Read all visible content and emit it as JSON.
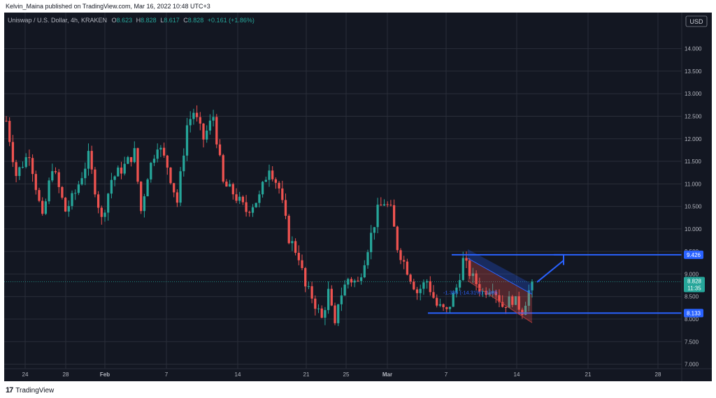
{
  "header": {
    "published_by": "Kelvin_Maina published on TradingView.com, Mar 16, 2022 10:48 UTC+3"
  },
  "footer": {
    "brand": "TradingView",
    "logo_glyph": "17"
  },
  "legend": {
    "symbol": "Uniswap / U.S. Dollar, 4h, KRAKEN",
    "o_label": "O",
    "o": "8.623",
    "h_label": "H",
    "h": "8.828",
    "l_label": "L",
    "l": "8.617",
    "c_label": "C",
    "c": "8.828",
    "change": "+0.161 (+1.86%)"
  },
  "currency": "USD",
  "colors": {
    "background": "#131722",
    "up": "#26a69a",
    "down": "#ef5350",
    "grid": "#2a2e39",
    "drawing": "#2962ff",
    "text": "#b2b5be"
  },
  "chart_data": {
    "type": "candlestick",
    "title": "Uniswap / U.S. Dollar, 4h, KRAKEN",
    "xlabel": "",
    "ylabel": "",
    "ylim": [
      6.9,
      14.8
    ],
    "y_ticks": [
      "14.000",
      "13.500",
      "13.000",
      "12.500",
      "12.000",
      "11.500",
      "11.000",
      "10.500",
      "10.000",
      "9.500",
      "9.000",
      "8.500",
      "8.000",
      "7.500",
      "7.000"
    ],
    "x_ticks": [
      "24",
      "28",
      "Feb",
      "7",
      "14",
      "21",
      "25",
      "Mar",
      "7",
      "14",
      "21",
      "28"
    ],
    "grid": true,
    "last_price": "8.828",
    "countdown": "11:35",
    "price_tags": [
      "9.426",
      "8.133"
    ],
    "horizontal_lines": [
      9.426,
      8.133
    ],
    "channel_label": "-1.385 (-14.31%) -1385",
    "path": [
      [
        0,
        12.4
      ],
      [
        3,
        11.2
      ],
      [
        7,
        11.7
      ],
      [
        11,
        10.2
      ],
      [
        14,
        11.4
      ],
      [
        18,
        10.4
      ],
      [
        21,
        10.8
      ],
      [
        25,
        11.6
      ],
      [
        29,
        10.2
      ],
      [
        32,
        11.1
      ],
      [
        36,
        11.4
      ],
      [
        39,
        11.7
      ],
      [
        41,
        10.4
      ],
      [
        43,
        11.2
      ],
      [
        46,
        11.9
      ],
      [
        49,
        11.4
      ],
      [
        52,
        10.6
      ],
      [
        55,
        12.3
      ],
      [
        57,
        12.6
      ],
      [
        60,
        12.0
      ],
      [
        63,
        12.5
      ],
      [
        66,
        11.0
      ],
      [
        69,
        10.8
      ],
      [
        73,
        10.4
      ],
      [
        77,
        10.7
      ],
      [
        80,
        11.4
      ],
      [
        83,
        10.9
      ],
      [
        86,
        9.8
      ],
      [
        89,
        9.4
      ],
      [
        91,
        8.7
      ],
      [
        93,
        8.5
      ],
      [
        96,
        8.0
      ],
      [
        98,
        8.6
      ],
      [
        100,
        7.8
      ],
      [
        101,
        8.4
      ],
      [
        104,
        8.9
      ],
      [
        107,
        8.8
      ],
      [
        110,
        9.6
      ],
      [
        113,
        10.4
      ],
      [
        115,
        10.6
      ],
      [
        117,
        10.4
      ],
      [
        119,
        9.6
      ],
      [
        122,
        9.1
      ],
      [
        125,
        8.6
      ],
      [
        128,
        8.85
      ],
      [
        131,
        8.3
      ],
      [
        134,
        8.15
      ],
      [
        137,
        8.7
      ],
      [
        139,
        9.3
      ],
      [
        142,
        8.9
      ],
      [
        145,
        8.6
      ],
      [
        148,
        8.75
      ],
      [
        151,
        8.3
      ],
      [
        154,
        8.45
      ],
      [
        157,
        8.2
      ],
      [
        159,
        8.62
      ],
      [
        160,
        8.828
      ]
    ]
  }
}
